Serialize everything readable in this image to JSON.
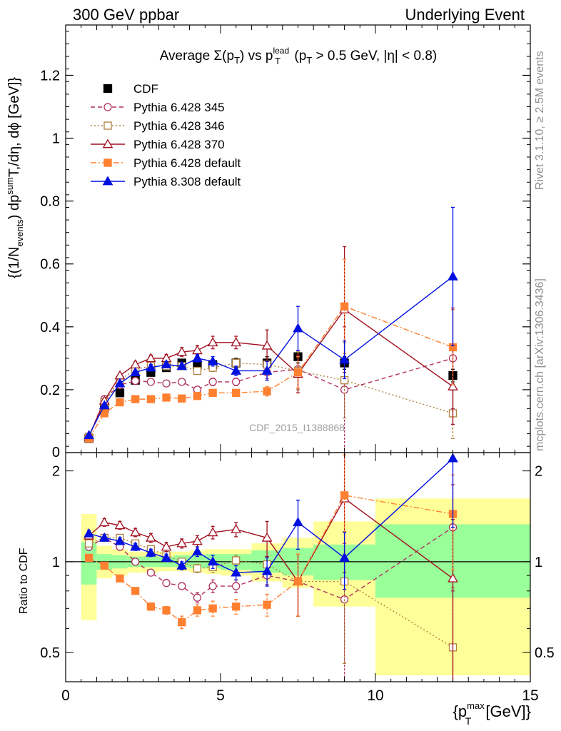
{
  "header": {
    "left": "300 GeV ppbar",
    "right": "Underlying Event"
  },
  "title": {
    "prefix": "Average ",
    "sigma": "Σ(p",
    "sigma_sub": "T",
    "sigma_close": ")",
    "vs": " vs p",
    "lead_sup": "lead",
    "lead_sub": "T",
    "cut": " (p",
    "cut_sub": "T",
    "cut_tail": " > 0.5 GeV, |η| < 0.8)"
  },
  "side_labels": {
    "rivet": "Rivet 3.1.10, ≥ 2.5M events",
    "mcplots": "mcplots.cern.ch [arXiv:1306.3436]"
  },
  "analysis_label": "CDF_2015_I1388868",
  "ylabel_main": {
    "a": "{(1/N",
    "a_sub": "events",
    "b": ") dp",
    "b_sup": "sum",
    "c": "T",
    "d": ",/dη, dϕ [GeV]}"
  },
  "ylabel_ratio": "Ratio to CDF",
  "xlabel": {
    "a": "{p",
    "sup": "max",
    "sub": "T",
    "b": " [GeV]}"
  },
  "chart_data": [
    {
      "type": "scatter",
      "panel": "main",
      "xlim": [
        0,
        15
      ],
      "ylim": [
        0,
        1.36
      ],
      "x_ticks": [
        0,
        5,
        10,
        15
      ],
      "y_ticks": [
        0.2,
        0.4,
        0.6,
        0.8,
        1,
        1.2
      ],
      "y_tick_labels": [
        "0.2",
        "0.4",
        "0.6",
        "0.8",
        "1",
        "1.2"
      ],
      "y_bottom_label": "0",
      "legend_position": "top-left",
      "series": [
        {
          "name": "CDF",
          "color": "#000000",
          "marker": "filled-square",
          "line": "none",
          "x": [
            0.75,
            1.25,
            1.75,
            2.25,
            2.75,
            3.25,
            3.75,
            4.25,
            4.75,
            5.5,
            6.5,
            7.5,
            9.0,
            12.5
          ],
          "y": [
            0.045,
            0.14,
            0.19,
            0.23,
            0.255,
            0.27,
            0.285,
            0.28,
            0.28,
            0.285,
            0.285,
            0.305,
            0.285,
            0.245
          ],
          "err": [
            0.005,
            0.01,
            0.01,
            0.01,
            0.01,
            0.01,
            0.01,
            0.012,
            0.015,
            0.015,
            0.02,
            0.02,
            0.02,
            0.02
          ]
        },
        {
          "name": "Pythia 6.428 345",
          "color": "#b03060",
          "marker": "open-circle",
          "line": "dashed",
          "x": [
            0.75,
            1.25,
            1.75,
            2.25,
            2.75,
            3.25,
            3.75,
            4.25,
            4.75,
            5.5,
            6.5,
            7.5,
            9.0,
            12.5
          ],
          "y": [
            0.05,
            0.17,
            0.215,
            0.228,
            0.225,
            0.22,
            0.225,
            0.2,
            0.225,
            0.225,
            0.255,
            0.265,
            0.2,
            0.3
          ],
          "err": [
            0.004,
            0.006,
            0.008,
            0.008,
            0.008,
            0.008,
            0.008,
            0.01,
            0.012,
            0.012,
            0.02,
            0.06,
            0.2,
            0.16
          ]
        },
        {
          "name": "Pythia 6.428 346",
          "color": "#b08040",
          "marker": "open-square",
          "line": "dotted",
          "x": [
            0.75,
            1.25,
            1.75,
            2.25,
            2.75,
            3.25,
            3.75,
            4.25,
            4.75,
            5.5,
            6.5,
            7.5,
            9.0,
            12.5
          ],
          "y": [
            0.05,
            0.16,
            0.23,
            0.265,
            0.275,
            0.275,
            0.275,
            0.26,
            0.27,
            0.285,
            0.28,
            0.26,
            0.23,
            0.125
          ],
          "err": [
            0.004,
            0.006,
            0.008,
            0.008,
            0.008,
            0.008,
            0.008,
            0.01,
            0.012,
            0.012,
            0.02,
            0.06,
            0.12,
            0.08
          ]
        },
        {
          "name": "Pythia 6.428 370",
          "color": "#a01020",
          "marker": "open-triangle",
          "line": "solid",
          "x": [
            0.75,
            1.25,
            1.75,
            2.25,
            2.75,
            3.25,
            3.75,
            4.25,
            4.75,
            5.5,
            6.5,
            7.5,
            9.0,
            12.5
          ],
          "y": [
            0.05,
            0.165,
            0.245,
            0.28,
            0.3,
            0.3,
            0.32,
            0.325,
            0.35,
            0.35,
            0.34,
            0.25,
            0.455,
            0.21
          ],
          "err": [
            0.004,
            0.006,
            0.008,
            0.01,
            0.01,
            0.012,
            0.014,
            0.016,
            0.02,
            0.02,
            0.05,
            0.06,
            0.2,
            0.12
          ]
        },
        {
          "name": "Pythia 6.428 default",
          "color": "#ff8030",
          "marker": "filled-square",
          "line": "dashdot",
          "x": [
            0.75,
            1.25,
            1.75,
            2.25,
            2.75,
            3.25,
            3.75,
            4.25,
            4.75,
            5.5,
            6.5,
            7.5,
            9.0,
            12.5
          ],
          "y": [
            0.045,
            0.125,
            0.16,
            0.17,
            0.17,
            0.175,
            0.172,
            0.18,
            0.19,
            0.19,
            0.195,
            0.255,
            0.465,
            0.335
          ],
          "err": [
            0.003,
            0.005,
            0.006,
            0.006,
            0.006,
            0.006,
            0.006,
            0.008,
            0.01,
            0.01,
            0.015,
            0.05,
            0.15,
            0.12
          ]
        },
        {
          "name": "Pythia 8.308 default",
          "color": "#0010e0",
          "marker": "filled-triangle",
          "line": "solid",
          "x": [
            0.75,
            1.25,
            1.75,
            2.25,
            2.75,
            3.25,
            3.75,
            4.25,
            4.75,
            5.5,
            6.5,
            7.5,
            9.0,
            12.5
          ],
          "y": [
            0.055,
            0.15,
            0.22,
            0.255,
            0.27,
            0.28,
            0.275,
            0.3,
            0.29,
            0.26,
            0.26,
            0.395,
            0.295,
            0.56
          ],
          "err": [
            0.004,
            0.006,
            0.008,
            0.008,
            0.01,
            0.01,
            0.01,
            0.012,
            0.015,
            0.015,
            0.03,
            0.07,
            0.06,
            0.22
          ]
        }
      ]
    },
    {
      "type": "scatter",
      "panel": "ratio",
      "ylabel": "Ratio to CDF",
      "xlim": [
        0,
        15
      ],
      "ylim": [
        0.4,
        2.3
      ],
      "y_scale": "log",
      "x_ticks": [
        0,
        5,
        10,
        15
      ],
      "x_tick_labels": [
        "0",
        "5",
        "10",
        "15"
      ],
      "y_ticks": [
        0.5,
        1,
        2
      ],
      "y_tick_labels": [
        "0.5",
        "1",
        "2"
      ],
      "reference_line": 1,
      "bands": [
        {
          "x0": 0.5,
          "x1": 1.0,
          "stat_lo": 0.84,
          "stat_hi": 1.16,
          "tot_lo": 0.64,
          "tot_hi": 1.44
        },
        {
          "x0": 1.0,
          "x1": 1.5,
          "stat_lo": 0.94,
          "stat_hi": 1.06,
          "tot_lo": 0.88,
          "tot_hi": 1.13
        },
        {
          "x0": 1.5,
          "x1": 2.0,
          "stat_lo": 0.95,
          "stat_hi": 1.05,
          "tot_lo": 0.9,
          "tot_hi": 1.1
        },
        {
          "x0": 2.0,
          "x1": 2.5,
          "stat_lo": 0.96,
          "stat_hi": 1.04,
          "tot_lo": 0.92,
          "tot_hi": 1.08
        },
        {
          "x0": 2.5,
          "x1": 3.0,
          "stat_lo": 0.96,
          "stat_hi": 1.04,
          "tot_lo": 0.92,
          "tot_hi": 1.08
        },
        {
          "x0": 3.0,
          "x1": 3.5,
          "stat_lo": 0.96,
          "stat_hi": 1.04,
          "tot_lo": 0.93,
          "tot_hi": 1.08
        },
        {
          "x0": 3.5,
          "x1": 4.0,
          "stat_lo": 0.96,
          "stat_hi": 1.05,
          "tot_lo": 0.93,
          "tot_hi": 1.08
        },
        {
          "x0": 4.0,
          "x1": 4.5,
          "stat_lo": 0.95,
          "stat_hi": 1.05,
          "tot_lo": 0.92,
          "tot_hi": 1.09
        },
        {
          "x0": 4.5,
          "x1": 5.0,
          "stat_lo": 0.95,
          "stat_hi": 1.06,
          "tot_lo": 0.91,
          "tot_hi": 1.1
        },
        {
          "x0": 5.0,
          "x1": 6.0,
          "stat_lo": 0.94,
          "stat_hi": 1.06,
          "tot_lo": 0.9,
          "tot_hi": 1.1
        },
        {
          "x0": 6.0,
          "x1": 7.0,
          "stat_lo": 0.92,
          "stat_hi": 1.09,
          "tot_lo": 0.86,
          "tot_hi": 1.15
        },
        {
          "x0": 7.0,
          "x1": 8.0,
          "stat_lo": 0.9,
          "stat_hi": 1.11,
          "tot_lo": 0.82,
          "tot_hi": 1.2
        },
        {
          "x0": 8.0,
          "x1": 10.0,
          "stat_lo": 0.87,
          "stat_hi": 1.14,
          "tot_lo": 0.71,
          "tot_hi": 1.36
        },
        {
          "x0": 10.0,
          "x1": 15.0,
          "stat_lo": 0.76,
          "stat_hi": 1.33,
          "tot_lo": 0.42,
          "tot_hi": 1.62
        }
      ],
      "series": [
        {
          "name": "CDF",
          "color": "#000000",
          "x": [
            0.75,
            1.25,
            1.75,
            2.25,
            2.75,
            3.25,
            3.75,
            4.25,
            4.75,
            5.5,
            6.5,
            7.5,
            9.0,
            12.5
          ],
          "y": [
            1,
            1,
            1,
            1,
            1,
            1,
            1,
            1,
            1,
            1,
            1,
            1,
            1,
            1
          ],
          "err": [
            0,
            0,
            0,
            0,
            0,
            0,
            0,
            0,
            0,
            0,
            0,
            0,
            0,
            0
          ]
        },
        {
          "name": "Pythia 6.428 345",
          "color": "#b03060",
          "x": [
            0.75,
            1.25,
            1.75,
            2.25,
            2.75,
            3.25,
            3.75,
            4.25,
            4.75,
            5.5,
            6.5,
            7.5,
            9.0,
            12.5
          ],
          "y": [
            1.12,
            1.2,
            1.12,
            1.0,
            0.92,
            0.85,
            0.83,
            0.76,
            0.83,
            0.83,
            0.9,
            0.86,
            0.75,
            1.3
          ],
          "err": [
            0.03,
            0.03,
            0.03,
            0.02,
            0.02,
            0.02,
            0.02,
            0.03,
            0.04,
            0.04,
            0.06,
            0.2,
            0.4,
            0.5
          ]
        },
        {
          "name": "Pythia 6.428 346",
          "color": "#b08040",
          "x": [
            0.75,
            1.25,
            1.75,
            2.25,
            2.75,
            3.25,
            3.75,
            4.25,
            4.75,
            5.5,
            6.5,
            7.5,
            9.0,
            12.5
          ],
          "y": [
            1.15,
            1.2,
            1.2,
            1.15,
            1.1,
            1.05,
            1.0,
            0.95,
            0.96,
            1.01,
            0.98,
            0.86,
            0.86,
            0.52
          ],
          "err": [
            0.03,
            0.03,
            0.03,
            0.02,
            0.02,
            0.02,
            0.02,
            0.03,
            0.04,
            0.04,
            0.06,
            0.2,
            0.4,
            0.3
          ]
        },
        {
          "name": "Pythia 6.428 370",
          "color": "#a01020",
          "x": [
            0.75,
            1.25,
            1.75,
            2.25,
            2.75,
            3.25,
            3.75,
            4.25,
            4.75,
            5.5,
            6.5,
            7.5,
            9.0,
            12.5
          ],
          "y": [
            1.22,
            1.35,
            1.32,
            1.25,
            1.2,
            1.12,
            1.15,
            1.17,
            1.25,
            1.28,
            1.2,
            0.86,
            1.62,
            0.88
          ],
          "err": [
            0.03,
            0.04,
            0.04,
            0.04,
            0.04,
            0.04,
            0.04,
            0.05,
            0.06,
            0.07,
            0.16,
            0.2,
            0.7,
            0.5
          ]
        },
        {
          "name": "Pythia 6.428 default",
          "color": "#ff8030",
          "x": [
            0.75,
            1.25,
            1.75,
            2.25,
            2.75,
            3.25,
            3.75,
            4.25,
            4.75,
            5.5,
            6.5,
            7.5,
            9.0,
            12.5
          ],
          "y": [
            1.03,
            0.97,
            0.88,
            0.8,
            0.71,
            0.69,
            0.63,
            0.69,
            0.7,
            0.71,
            0.72,
            0.86,
            1.66,
            1.44
          ],
          "err": [
            0.02,
            0.02,
            0.02,
            0.02,
            0.02,
            0.02,
            0.03,
            0.03,
            0.04,
            0.04,
            0.06,
            0.2,
            0.6,
            0.5
          ]
        },
        {
          "name": "Pythia 8.308 default",
          "color": "#0010e0",
          "x": [
            0.75,
            1.25,
            1.75,
            2.25,
            2.75,
            3.25,
            3.75,
            4.25,
            4.75,
            5.5,
            6.5,
            7.5,
            9.0,
            12.5
          ],
          "y": [
            1.24,
            1.2,
            1.17,
            1.12,
            1.07,
            1.03,
            0.97,
            1.08,
            1.0,
            0.92,
            0.93,
            1.35,
            1.03,
            2.2
          ],
          "err": [
            0.03,
            0.03,
            0.03,
            0.03,
            0.03,
            0.03,
            0.03,
            0.04,
            0.05,
            0.05,
            0.1,
            0.25,
            0.22,
            0.9
          ]
        }
      ]
    }
  ]
}
